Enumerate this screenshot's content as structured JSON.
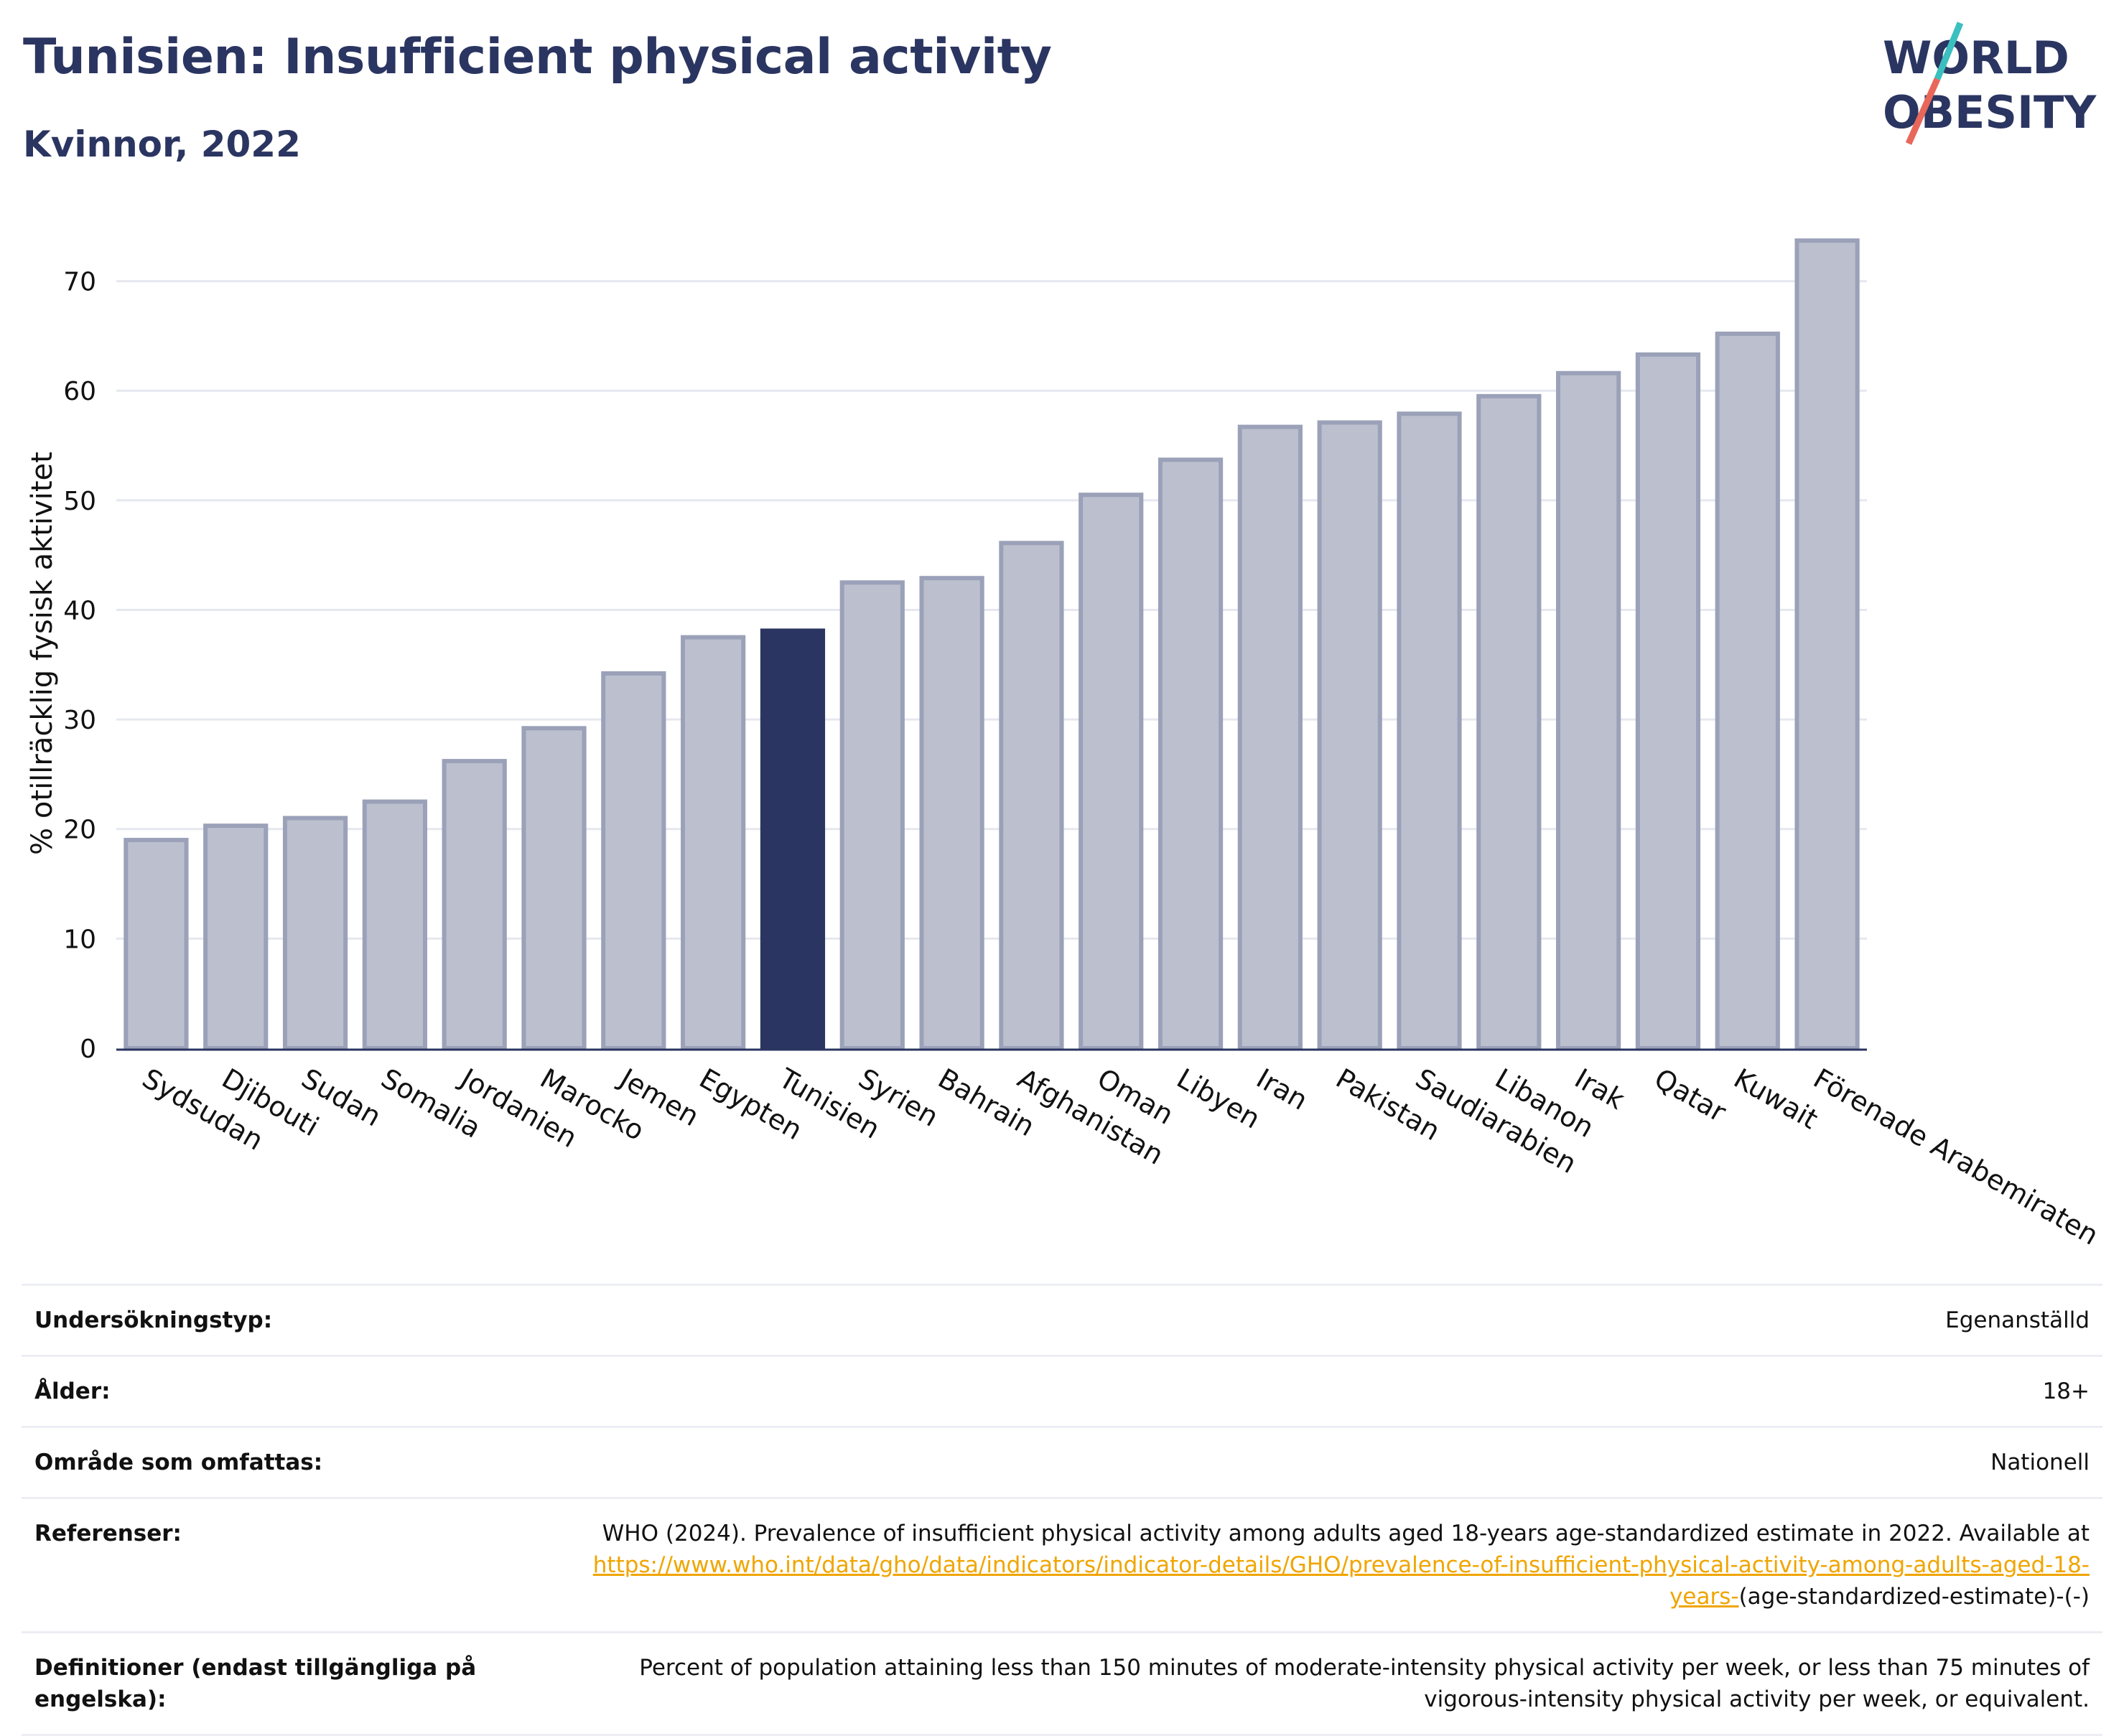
{
  "title": "Tunisien: Insufficient physical activity",
  "subtitle": "Kvinnor, 2022",
  "logo": {
    "line1": "WORLD",
    "line2": "OBESITY",
    "slash_colors": [
      "#3bbfbf",
      "#e8675a"
    ],
    "text_color": "#2b3561"
  },
  "colors": {
    "bar": "#bcc0ce",
    "bar_border": "#9aa1b8",
    "highlight": "#2b3561",
    "grid": "#e6e8ef",
    "axis": "#2b3561",
    "link": "#f0a500"
  },
  "chart_data": {
    "type": "bar",
    "ylabel": "% otillräcklig fysisk aktivitet",
    "ylim": [
      0,
      76
    ],
    "yticks": [
      0,
      10,
      20,
      30,
      40,
      50,
      60,
      70
    ],
    "grid": true,
    "highlight": "Tunisien",
    "categories": [
      "Sydsudan",
      "Djibouti",
      "Sudan",
      "Somalia",
      "Jordanien",
      "Marocko",
      "Jemen",
      "Egypten",
      "Tunisien",
      "Syrien",
      "Bahrain",
      "Afghanistan",
      "Oman",
      "Libyen",
      "Iran",
      "Pakistan",
      "Saudiarabien",
      "Libanon",
      "Irak",
      "Qatar",
      "Kuwait",
      "Förenade Arabemiraten"
    ],
    "values": [
      19.0,
      20.3,
      21.0,
      22.5,
      26.2,
      29.2,
      34.2,
      37.5,
      38.1,
      42.5,
      42.9,
      46.1,
      50.5,
      53.7,
      56.7,
      57.1,
      57.9,
      59.5,
      61.6,
      63.3,
      65.2,
      73.7
    ]
  },
  "info": [
    {
      "label": "Undersökningstyp:",
      "value": "Egenanställd"
    },
    {
      "label": "Ålder:",
      "value": "18+"
    },
    {
      "label": "Område som omfattas:",
      "value": "Nationell"
    },
    {
      "label": "Referenser:",
      "value_prefix": "WHO (2024). Prevalence of insufficient physical activity among adults aged 18-years age-standardized estimate in 2022. Available at",
      "link": "https://www.who.int/data/gho/data/indicators/indicator-details/GHO/prevalence-of-insufficient-physical-activity-among-adults-aged-18-years-",
      "value_suffix": "(age-standardized-estimate)-(-)"
    },
    {
      "label": "Definitioner (endast tillgängliga på engelska):",
      "value": "Percent of population attaining less than 150 minutes of moderate-intensity physical activity per week, or less than 75 minutes of vigorous-intensity physical activity per week, or equivalent."
    }
  ]
}
